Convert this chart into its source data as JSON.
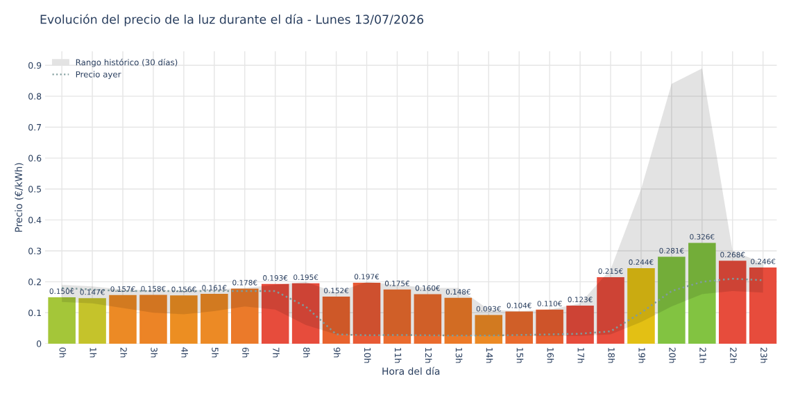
{
  "chart_data": {
    "type": "bar",
    "title": "Evolución del precio de la luz durante el día - Lunes 13/07/2026",
    "xlabel": "Hora del día",
    "ylabel": "Precio (€/kWh)",
    "categories": [
      "0h",
      "1h",
      "2h",
      "3h",
      "4h",
      "5h",
      "6h",
      "7h",
      "8h",
      "9h",
      "10h",
      "11h",
      "12h",
      "13h",
      "14h",
      "15h",
      "16h",
      "17h",
      "18h",
      "19h",
      "20h",
      "21h",
      "22h",
      "23h"
    ],
    "ylim": [
      0,
      0.945
    ],
    "yticks": [
      0,
      0.1,
      0.2,
      0.3,
      0.4,
      0.5,
      0.6,
      0.7,
      0.8,
      0.9
    ],
    "grid": true,
    "legend": "top left",
    "series": [
      {
        "values": [
          0.15,
          0.147,
          0.157,
          0.158,
          0.156,
          0.161,
          0.178,
          0.193,
          0.195,
          0.152,
          0.197,
          0.175,
          0.16,
          0.148,
          0.093,
          0.104,
          0.11,
          0.123,
          0.215,
          0.244,
          0.281,
          0.326,
          0.268,
          0.246
        ],
        "value_labels": [
          "0.150€",
          "0.147€",
          "0.157€",
          "0.158€",
          "0.156€",
          "0.161€",
          "0.178€",
          "0.193€",
          "0.195€",
          "0.152€",
          "0.197€",
          "0.175€",
          "0.160€",
          "0.148€",
          "0.093€",
          "0.104€",
          "0.110€",
          "0.123€",
          "0.215€",
          "0.244€",
          "0.281€",
          "0.326€",
          "0.268€",
          "0.246€"
        ],
        "colors": [
          "#a4c639",
          "#c5c32b",
          "#ec8a25",
          "#ec8426",
          "#ec8e22",
          "#ec8a25",
          "#eb7a2a",
          "#e74c3c",
          "#e74c3c",
          "#e8632e",
          "#e85a35",
          "#ea6b2e",
          "#ea6b2e",
          "#ec7a28",
          "#ec8a25",
          "#ea6b2e",
          "#e85f30",
          "#e74c3c",
          "#e74c3c",
          "#e3c014",
          "#82c341",
          "#82c341",
          "#e74c3c",
          "#e74c3c"
        ]
      },
      {
        "type": "line",
        "name": "Rango histórico (30 días)",
        "color": "#e3e3e3",
        "values": [
          null,
          null,
          null,
          null,
          null,
          null,
          null,
          null,
          null,
          null,
          null,
          null,
          null,
          null,
          null,
          null,
          null,
          null,
          null,
          null,
          null,
          null,
          null,
          null
        ],
        "upper": [
          0.19,
          0.185,
          0.175,
          0.172,
          0.172,
          0.175,
          0.18,
          0.19,
          0.2,
          0.165,
          0.2,
          0.19,
          0.18,
          0.18,
          0.11,
          0.105,
          0.11,
          0.13,
          0.24,
          0.5,
          0.84,
          0.89,
          0.3,
          0.26
        ],
        "lower": [
          0.135,
          0.13,
          0.115,
          0.1,
          0.095,
          0.105,
          0.12,
          0.11,
          0.06,
          0.03,
          0.025,
          0.025,
          0.025,
          0.025,
          0.025,
          0.025,
          0.025,
          0.025,
          0.03,
          0.07,
          0.12,
          0.16,
          0.17,
          0.165
        ]
      },
      {
        "type": "line",
        "name": "Precio ayer",
        "color": "#7f9c9c",
        "line_style": "dotted",
        "values": [
          0.18,
          0.175,
          0.17,
          0.17,
          0.17,
          0.17,
          0.17,
          0.17,
          0.12,
          0.03,
          0.027,
          0.028,
          0.027,
          0.026,
          0.026,
          0.028,
          0.03,
          0.032,
          0.04,
          0.1,
          0.17,
          0.2,
          0.21,
          0.205
        ]
      }
    ]
  }
}
